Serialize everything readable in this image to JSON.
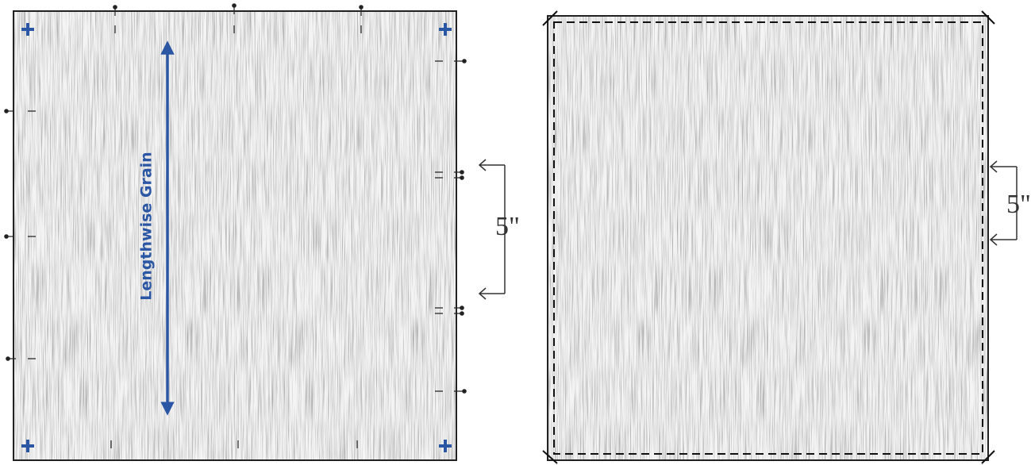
{
  "left_panel": {
    "grain_label": "Lengthwise Grain",
    "measure_label": "5\""
  },
  "right_panel": {
    "measure_label": "5\""
  }
}
